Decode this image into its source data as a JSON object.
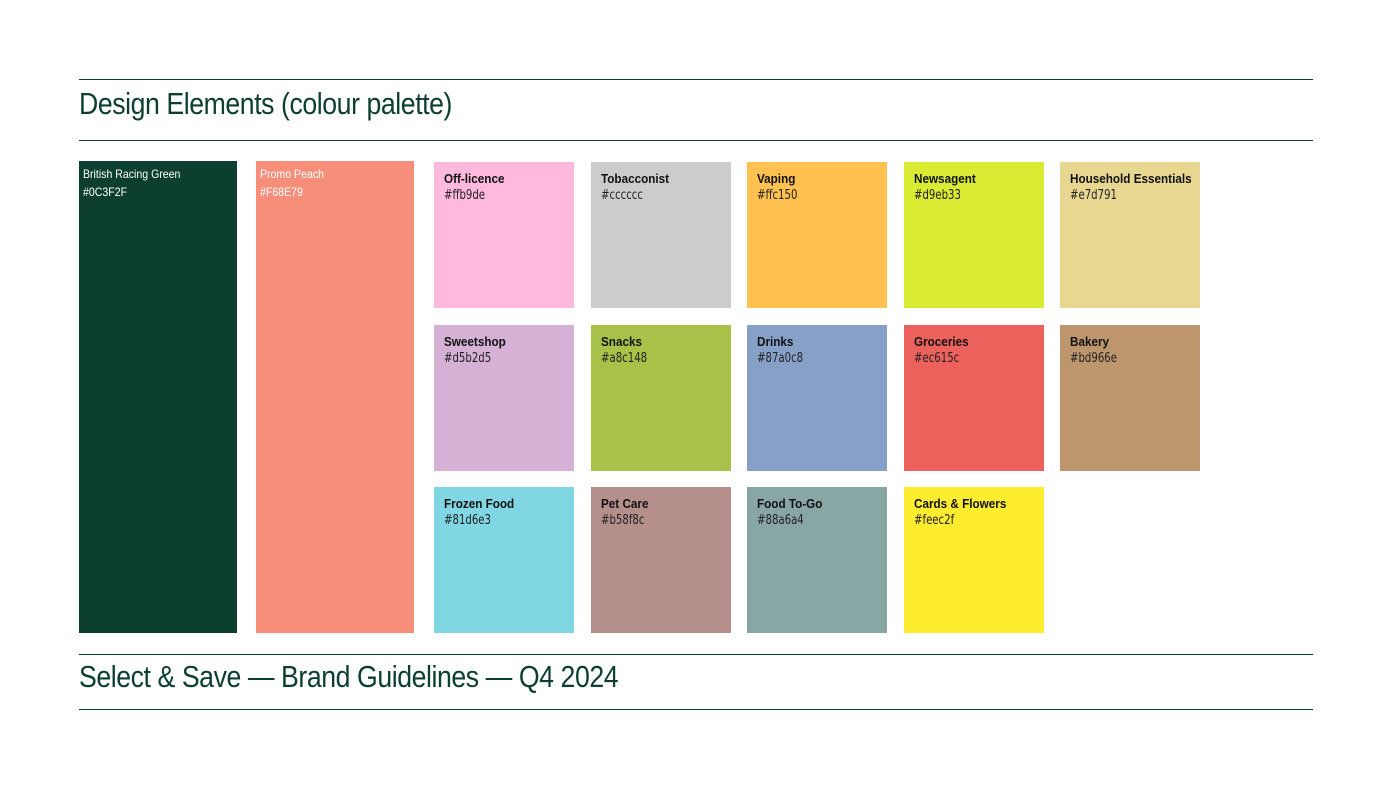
{
  "page": {
    "title": "Design Elements (colour palette)",
    "footer": "Select & Save — Brand Guidelines — Q4 2024",
    "brand_color": "#0c3f2f"
  },
  "primary": [
    {
      "name": "British Racing Green",
      "hex": "#0C3F2F",
      "color": "#0c3f2f"
    },
    {
      "name": "Promo Peach",
      "hex": "#F68E79",
      "color": "#f68e79"
    }
  ],
  "swatches": [
    {
      "name": "Off-licence",
      "hex": "#ffb9de",
      "color": "#ffb9de"
    },
    {
      "name": "Tobacconist",
      "hex": "#cccccc",
      "color": "#cccccc"
    },
    {
      "name": "Vaping",
      "hex": "#ffc150",
      "color": "#ffc150"
    },
    {
      "name": "Newsagent",
      "hex": "#d9eb33",
      "color": "#d9eb33"
    },
    {
      "name": "Household Essentials",
      "hex": "#e7d791",
      "color": "#e7d791"
    },
    {
      "name": "Sweetshop",
      "hex": "#d5b2d5",
      "color": "#d5b2d5"
    },
    {
      "name": "Snacks",
      "hex": "#a8c148",
      "color": "#a8c148"
    },
    {
      "name": "Drinks",
      "hex": "#87a0c8",
      "color": "#87a0c8"
    },
    {
      "name": "Groceries",
      "hex": "#ec615c",
      "color": "#ec615c"
    },
    {
      "name": "Bakery",
      "hex": "#bd966e",
      "color": "#bd966e"
    },
    {
      "name": "Frozen Food",
      "hex": "#81d6e3",
      "color": "#81d6e3"
    },
    {
      "name": "Pet Care",
      "hex": "#b58f8c",
      "color": "#b58f8c"
    },
    {
      "name": "Food To-Go",
      "hex": "#88a6a4",
      "color": "#88a6a4"
    },
    {
      "name": "Cards & Flowers",
      "hex": "#feec2f",
      "color": "#feec2f"
    }
  ]
}
